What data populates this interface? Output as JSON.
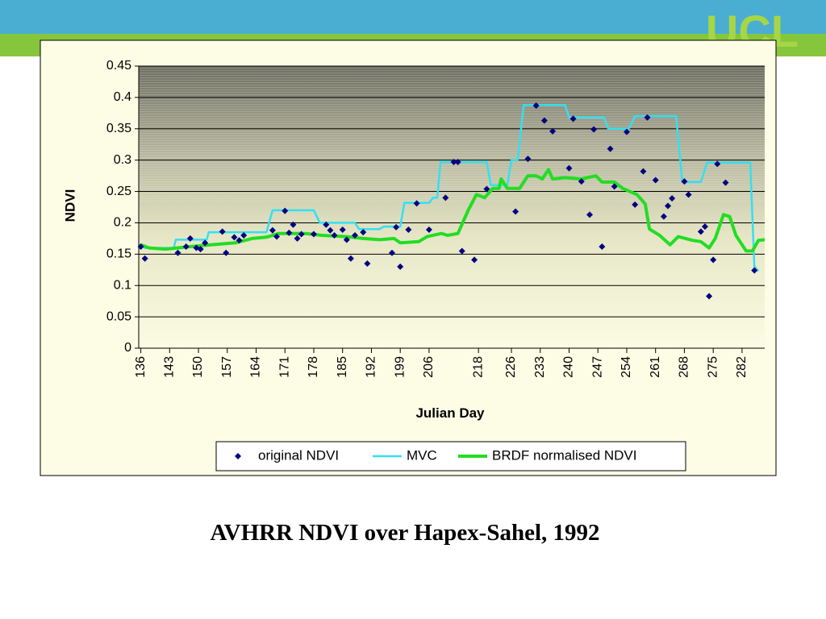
{
  "logo": "UCL",
  "caption": "AVHRR NDVI over Hapex-Sahel, 1992",
  "chart_data": {
    "type": "line",
    "x_label": "Julian Day",
    "y_label": "NDVI",
    "xlim": [
      135.5,
      287.5
    ],
    "xticks": [
      136,
      143,
      150,
      157,
      164,
      171,
      178,
      185,
      192,
      199,
      206,
      218,
      226,
      233,
      240,
      247,
      254,
      261,
      268,
      275,
      282
    ],
    "ylim": [
      0,
      0.45
    ],
    "yticks": [
      0,
      0.05,
      0.1,
      0.15,
      0.2,
      0.25,
      0.3,
      0.35,
      0.4,
      0.45
    ],
    "grid": true,
    "legend": "bottom",
    "series": [
      {
        "name": "original NDVI",
        "style": "marker",
        "color": "#000080",
        "x": [
          136,
          137,
          145,
          147,
          148,
          149.5,
          150.5,
          151.6,
          155.8,
          156.7,
          158.7,
          159.9,
          161,
          168,
          169,
          171,
          172,
          173,
          174,
          175,
          178,
          181,
          182,
          183,
          185,
          186,
          187,
          188,
          190,
          191,
          197,
          198,
          199,
          201,
          203,
          206,
          210,
          212,
          213,
          214,
          217,
          220,
          227,
          230,
          232,
          234,
          236,
          240,
          241,
          243,
          245,
          246,
          248,
          250,
          251,
          254,
          256,
          258,
          259,
          261,
          263,
          264,
          265,
          268,
          269,
          272,
          273,
          274,
          275,
          276,
          278,
          285
        ],
        "values": [
          0.162,
          0.143,
          0.152,
          0.162,
          0.175,
          0.16,
          0.158,
          0.168,
          0.186,
          0.152,
          0.177,
          0.172,
          0.18,
          0.188,
          0.178,
          0.219,
          0.184,
          0.197,
          0.175,
          0.182,
          0.182,
          0.197,
          0.188,
          0.18,
          0.189,
          0.173,
          0.143,
          0.18,
          0.185,
          0.135,
          0.152,
          0.193,
          0.13,
          0.189,
          0.231,
          0.189,
          0.24,
          0.297,
          0.297,
          0.155,
          0.141,
          0.254,
          0.218,
          0.302,
          0.387,
          0.363,
          0.346,
          0.287,
          0.366,
          0.266,
          0.213,
          0.349,
          0.162,
          0.318,
          0.258,
          0.345,
          0.229,
          0.282,
          0.368,
          0.268,
          0.21,
          0.227,
          0.239,
          0.266,
          0.245,
          0.186,
          0.194,
          0.083,
          0.141,
          0.294,
          0.264,
          0.124
        ]
      },
      {
        "name": "MVC",
        "style": "line",
        "color": "#33e0f0",
        "x": [
          136,
          137,
          144,
          144.5,
          152,
          152.5,
          166.5,
          168,
          178,
          179.5,
          188,
          189,
          194,
          195,
          199,
          200,
          206,
          207,
          208,
          208.8,
          220,
          221,
          225,
          226,
          227.5,
          229,
          239,
          240,
          248.5,
          249.5,
          254.5,
          256,
          266,
          267.5,
          272,
          273.5,
          284,
          285,
          286
        ],
        "values": [
          0.165,
          0.16,
          0.16,
          0.173,
          0.173,
          0.185,
          0.185,
          0.22,
          0.22,
          0.2,
          0.2,
          0.19,
          0.19,
          0.194,
          0.194,
          0.232,
          0.232,
          0.24,
          0.24,
          0.297,
          0.297,
          0.26,
          0.26,
          0.3,
          0.3,
          0.388,
          0.388,
          0.368,
          0.368,
          0.35,
          0.35,
          0.37,
          0.37,
          0.265,
          0.265,
          0.296,
          0.296,
          0.13,
          0.123
        ]
      },
      {
        "name": "BRDF normalised NDVI",
        "style": "thick",
        "color": "#22dd22",
        "x": [
          136,
          138,
          142,
          148,
          153,
          159,
          163,
          166.5,
          169.5,
          176,
          180,
          186,
          190,
          194,
          197.5,
          199,
          203.5,
          205.5,
          209,
          210.5,
          213,
          215.5,
          217.5,
          219.5,
          221.5,
          223,
          223.5,
          225,
          228,
          230,
          232,
          233.5,
          235,
          236,
          239,
          243,
          246.5,
          248,
          251,
          253,
          256.5,
          258.5,
          259.5,
          262,
          264.5,
          266.5,
          270,
          272,
          274,
          275.5,
          277.5,
          279,
          280.5,
          283,
          284.5,
          286,
          287.5
        ],
        "values": [
          0.165,
          0.16,
          0.158,
          0.162,
          0.165,
          0.168,
          0.175,
          0.177,
          0.183,
          0.183,
          0.18,
          0.178,
          0.175,
          0.173,
          0.175,
          0.168,
          0.17,
          0.178,
          0.183,
          0.18,
          0.183,
          0.22,
          0.245,
          0.24,
          0.255,
          0.255,
          0.27,
          0.255,
          0.255,
          0.275,
          0.275,
          0.27,
          0.285,
          0.27,
          0.272,
          0.27,
          0.275,
          0.265,
          0.265,
          0.255,
          0.245,
          0.23,
          0.19,
          0.18,
          0.165,
          0.178,
          0.172,
          0.17,
          0.16,
          0.175,
          0.213,
          0.21,
          0.18,
          0.155,
          0.155,
          0.172,
          0.173
        ]
      }
    ]
  }
}
